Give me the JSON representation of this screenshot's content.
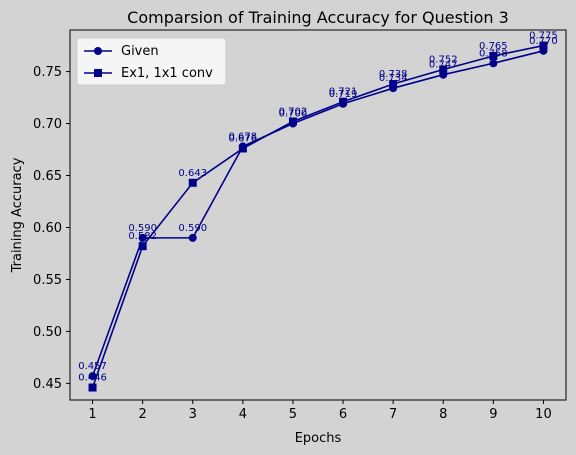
{
  "chart_data": {
    "type": "line",
    "title": "Comparsion of Training Accuracy for Question 3",
    "xlabel": "Epochs",
    "ylabel": "Training Accuracy",
    "x": [
      1,
      2,
      3,
      4,
      5,
      6,
      7,
      8,
      9,
      10
    ],
    "xlim": [
      0.55,
      10.45
    ],
    "ylim": [
      0.434,
      0.79
    ],
    "yticks": [
      0.45,
      0.5,
      0.55,
      0.6,
      0.65,
      0.7,
      0.75
    ],
    "ytick_labels": [
      "0.45",
      "0.50",
      "0.55",
      "0.60",
      "0.65",
      "0.70",
      "0.75"
    ],
    "xtick_labels": [
      "1",
      "2",
      "3",
      "4",
      "5",
      "6",
      "7",
      "8",
      "9",
      "10"
    ],
    "grid": false,
    "legend_position": "top-left",
    "series": [
      {
        "name": "Given",
        "marker": "circle",
        "color": "#00008b",
        "values": [
          0.457,
          0.59,
          0.59,
          0.678,
          0.7,
          0.719,
          0.734,
          0.747,
          0.758,
          0.77
        ],
        "labels": [
          "0.457",
          "0.590",
          "0.590",
          "0.678",
          "0.700",
          "0.719",
          "0.734",
          "0.747",
          "0.758",
          "0.770"
        ]
      },
      {
        "name": "Ex1, 1x1 conv",
        "marker": "square",
        "color": "#00008b",
        "values": [
          0.446,
          0.582,
          0.643,
          0.676,
          0.702,
          0.721,
          0.738,
          0.752,
          0.765,
          0.775
        ],
        "labels": [
          "0.446",
          "0.582",
          "0.643",
          "0.676",
          "0.702",
          "0.721",
          "0.738",
          "0.752",
          "0.765",
          "0.775"
        ]
      }
    ]
  }
}
